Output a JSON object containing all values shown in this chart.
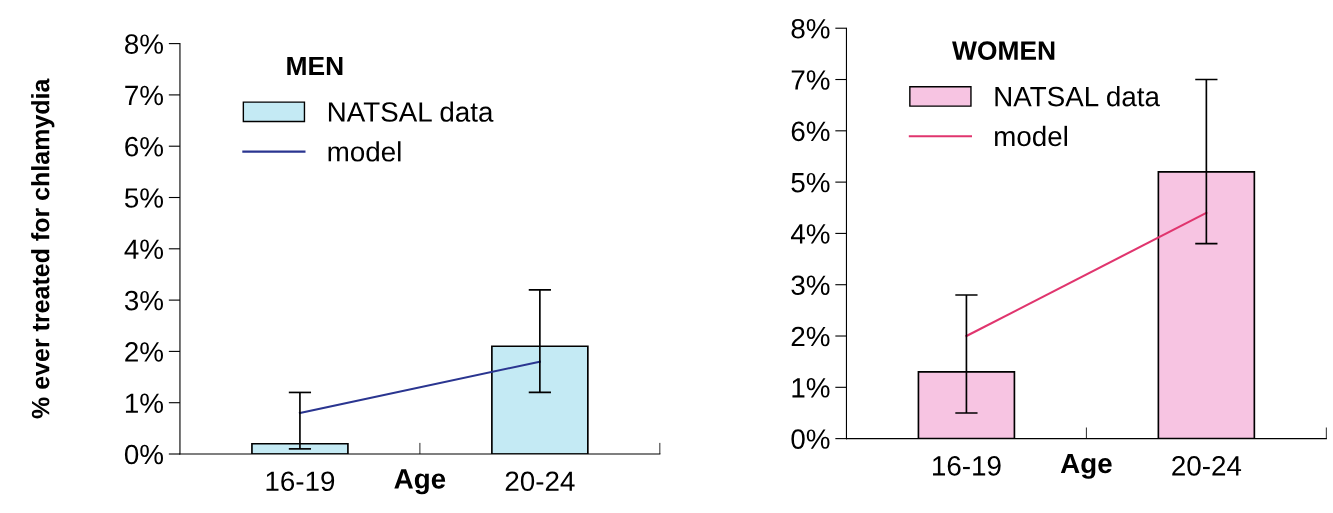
{
  "chart_data": [
    {
      "type": "bar",
      "title": "MEN",
      "xlabel": "Age",
      "ylabel": "% ever treated for chlamydia",
      "categories": [
        "16-19",
        "20-24"
      ],
      "series": [
        {
          "name": "NATSAL data",
          "color": "#c4eaf4",
          "values": [
            0.2,
            2.1
          ],
          "errors": [
            [
              0.1,
              1.2
            ],
            [
              1.2,
              3.2
            ]
          ]
        },
        {
          "name": "model",
          "type": "line",
          "color": "#2a3590",
          "values": [
            0.8,
            1.8
          ]
        }
      ],
      "ylim": [
        0,
        8
      ],
      "yticks": [
        {
          "value": 0,
          "label": "0%"
        },
        {
          "value": 1,
          "label": "1%"
        },
        {
          "value": 2,
          "label": "2%"
        },
        {
          "value": 3,
          "label": "3%"
        },
        {
          "value": 4,
          "label": "4%"
        },
        {
          "value": 5,
          "label": "5%"
        },
        {
          "value": 6,
          "label": "6%"
        },
        {
          "value": 7,
          "label": "7%"
        },
        {
          "value": 8,
          "label": "8%"
        }
      ],
      "legend": "top left",
      "grid": false
    },
    {
      "type": "bar",
      "title": "WOMEN",
      "xlabel": "Age",
      "categories": [
        "16-19",
        "20-24"
      ],
      "series": [
        {
          "name": "NATSAL data",
          "color": "#f7c4e2",
          "values": [
            1.3,
            5.2
          ],
          "errors": [
            [
              0.5,
              2.8
            ],
            [
              3.8,
              7.0
            ]
          ]
        },
        {
          "name": "model",
          "type": "line",
          "color": "#e0356e",
          "values": [
            2.0,
            4.4
          ]
        }
      ],
      "ylim": [
        0,
        8
      ],
      "yticks": [
        {
          "value": 0,
          "label": "0%"
        },
        {
          "value": 1,
          "label": "1%"
        },
        {
          "value": 2,
          "label": "2%"
        },
        {
          "value": 3,
          "label": "3%"
        },
        {
          "value": 4,
          "label": "4%"
        },
        {
          "value": 5,
          "label": "5%"
        },
        {
          "value": 6,
          "label": "6%"
        },
        {
          "value": 7,
          "label": "7%"
        },
        {
          "value": 8,
          "label": "8%"
        }
      ],
      "legend": "top left",
      "grid": false
    }
  ]
}
